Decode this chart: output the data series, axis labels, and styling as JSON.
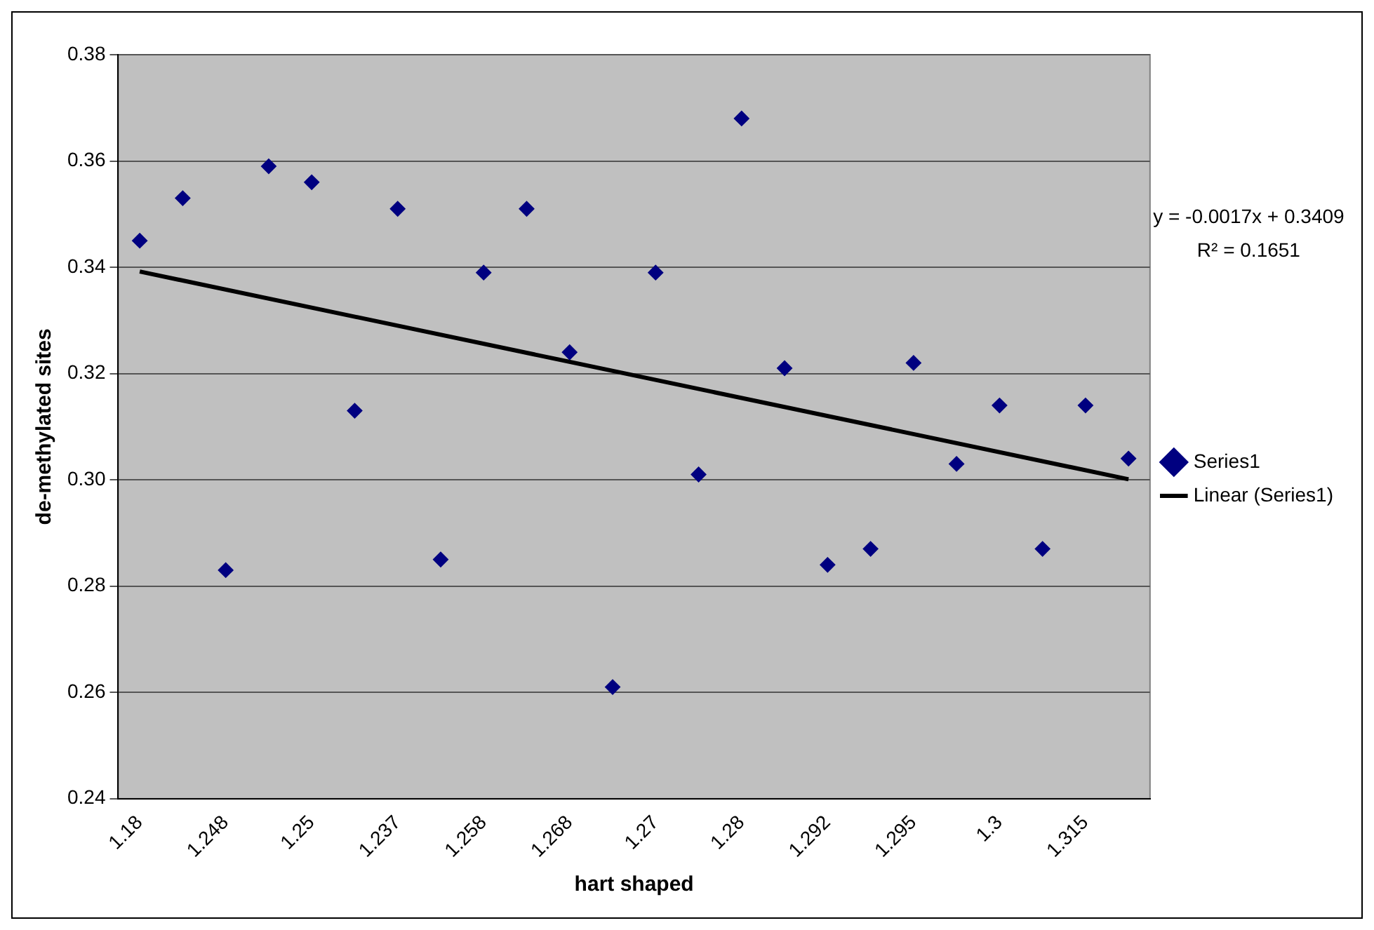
{
  "chart_data": {
    "type": "scatter",
    "xlabel": "hart shaped",
    "ylabel": "de-methylated sites",
    "categories": [
      "1.18",
      null,
      "1.248",
      null,
      "1.25",
      null,
      "1.237",
      null,
      "1.258",
      null,
      "1.268",
      null,
      "1.27",
      null,
      "1.28",
      null,
      "1.292",
      null,
      "1.295",
      null,
      "1.3",
      null,
      "1.315",
      null
    ],
    "series": [
      {
        "name": "Series1",
        "marker": "diamond",
        "color": "#000080",
        "values": [
          0.345,
          0.353,
          0.283,
          0.359,
          0.356,
          0.313,
          0.351,
          0.285,
          0.339,
          0.351,
          0.324,
          0.261,
          0.339,
          0.301,
          0.368,
          0.321,
          0.284,
          0.287,
          0.322,
          0.303,
          0.314,
          0.287,
          0.314,
          0.304
        ]
      },
      {
        "name": "Linear (Series1)",
        "type": "line",
        "marker": "none",
        "color": "#000000",
        "values": [
          0.3392,
          null,
          null,
          null,
          null,
          null,
          null,
          null,
          null,
          null,
          null,
          null,
          null,
          null,
          null,
          null,
          null,
          null,
          null,
          null,
          null,
          null,
          null,
          0.3001
        ]
      }
    ],
    "ylim": [
      0.24,
      0.38
    ],
    "yticks": [
      0.24,
      0.26,
      0.28,
      {
        "value": 0.3,
        "label": "0.30"
      },
      0.32,
      0.34,
      0.36,
      0.38
    ],
    "grid": "y",
    "legend": "right",
    "annotations": [
      "y = -0.0017x + 0.3409",
      "R² = 0.1651"
    ]
  }
}
